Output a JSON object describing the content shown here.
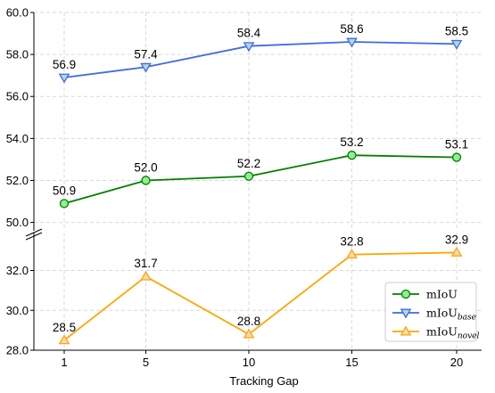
{
  "chart_data": {
    "type": "line",
    "xlabel": "Tracking Gap",
    "x": [
      1,
      5,
      10,
      15,
      20
    ],
    "x_tick_labels": [
      "1",
      "5",
      "10",
      "15",
      "20"
    ],
    "broken_y_axis": true,
    "upper_ylim": [
      49.6,
      60.0
    ],
    "upper_y_ticks": [
      "50.0",
      "52.0",
      "54.0",
      "56.0",
      "58.0",
      "60.0"
    ],
    "lower_ylim": [
      28.0,
      33.9
    ],
    "lower_y_ticks": [
      "28.0",
      "30.0",
      "32.0"
    ],
    "grid": true,
    "legend_position": "lower-right",
    "series": [
      {
        "name": "mIoU",
        "name_subscript": "",
        "color": "#008000",
        "face_color": "#90EE90",
        "marker": "circle",
        "panel": "upper",
        "values": [
          50.9,
          52.0,
          52.2,
          53.2,
          53.1
        ],
        "labels": [
          "50.9",
          "52.0",
          "52.2",
          "53.2",
          "53.1"
        ]
      },
      {
        "name": "mIoU",
        "name_subscript": "base",
        "color": "#4169E1",
        "face_color": "#ADD8E6",
        "marker": "triangle-down",
        "panel": "upper",
        "values": [
          56.9,
          57.4,
          58.4,
          58.6,
          58.5
        ],
        "labels": [
          "56.9",
          "57.4",
          "58.4",
          "58.6",
          "58.5"
        ]
      },
      {
        "name": "mIoU",
        "name_subscript": "novel",
        "color": "#FFA500",
        "face_color": "#FFDAB9",
        "marker": "triangle-up",
        "panel": "lower",
        "values": [
          28.5,
          31.7,
          28.8,
          32.8,
          32.9
        ],
        "labels": [
          "28.5",
          "31.7",
          "28.8",
          "32.8",
          "32.9"
        ]
      }
    ]
  }
}
